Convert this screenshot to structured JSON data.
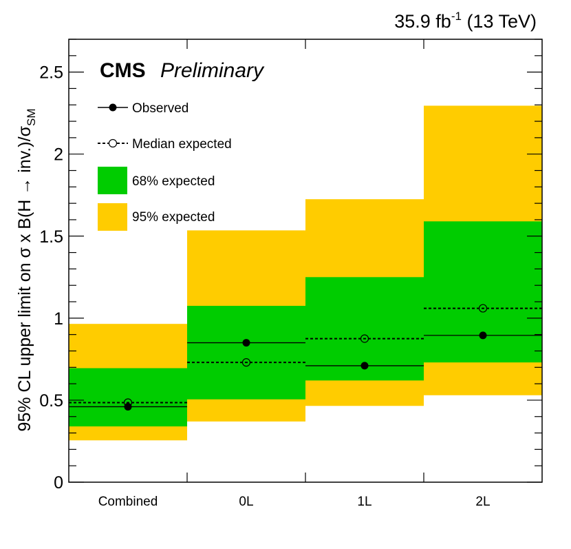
{
  "chart_data": {
    "type": "bar",
    "lumi_label": {
      "prefix": "35.9 fb",
      "sup": "-1",
      "suffix": " (13 TeV)"
    },
    "cms_label": "CMS",
    "preliminary_label": "Preliminary",
    "ylabel": {
      "main": "95% CL upper limit on σ x B(H → inv.)/σ",
      "sub": "SM"
    },
    "xlabel": "",
    "ylim": [
      0,
      2.7
    ],
    "yticks": [
      {
        "v": 0,
        "label": "0"
      },
      {
        "v": 0.5,
        "label": "0.5"
      },
      {
        "v": 1,
        "label": "1"
      },
      {
        "v": 1.5,
        "label": "1.5"
      },
      {
        "v": 2,
        "label": "2"
      },
      {
        "v": 2.5,
        "label": "2.5"
      }
    ],
    "categories": [
      "Combined",
      "0L",
      "1L",
      "2L"
    ],
    "legend": {
      "placement": "top-left",
      "observed": "Observed",
      "expected": "Median expected",
      "band68": "68% expected",
      "band95": "95% expected"
    },
    "colors": {
      "band68": "#00cc00",
      "band95": "#ffcc00",
      "line": "#000000"
    },
    "series": [
      {
        "name": "Observed",
        "values": [
          0.46,
          0.85,
          0.71,
          0.895
        ]
      },
      {
        "name": "Median expected",
        "values": [
          0.485,
          0.73,
          0.875,
          1.06
        ]
      },
      {
        "name": "68% expected low",
        "values": [
          0.34,
          0.505,
          0.62,
          0.73
        ]
      },
      {
        "name": "68% expected high",
        "values": [
          0.695,
          1.075,
          1.25,
          1.59
        ]
      },
      {
        "name": "95% expected low",
        "values": [
          0.255,
          0.37,
          0.465,
          0.53
        ]
      },
      {
        "name": "95% expected high",
        "values": [
          0.965,
          1.535,
          1.725,
          2.295
        ]
      }
    ]
  }
}
